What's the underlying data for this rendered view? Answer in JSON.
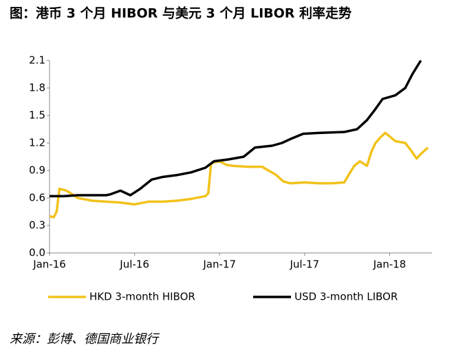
{
  "title": "图：港币 3 个月 HIBOR 与美元 3 个月 LIBOR 利率走势",
  "source": "来源：彭博、德国商业银行",
  "chart_data": {
    "type": "line",
    "xlim": [
      0,
      27
    ],
    "xticks": [
      {
        "value": 0,
        "label": "Jan-16"
      },
      {
        "value": 6,
        "label": "Jul-16"
      },
      {
        "value": 12,
        "label": "Jan-17"
      },
      {
        "value": 18,
        "label": "Jul-17"
      },
      {
        "value": 24,
        "label": "Jan-18"
      }
    ],
    "ylim": [
      0,
      2.1
    ],
    "yticks": [
      {
        "value": 0,
        "label": "0.0"
      },
      0.3,
      0.6,
      0.9,
      1.2,
      1.5,
      1.8,
      2.1
    ],
    "legend": "bottom",
    "series": [
      {
        "name": "HKD 3-month HIBOR",
        "color": "#f2c21b",
        "x": [
          0,
          0.3,
          0.5,
          0.7,
          1.2,
          2,
          3,
          4,
          5,
          6,
          7,
          8,
          9,
          10,
          11,
          11.2,
          11.4,
          12,
          12.5,
          13,
          14,
          15,
          16,
          16.5,
          17,
          18,
          19,
          20,
          20.8,
          21.1,
          21.5,
          21.9,
          22.4,
          22.7,
          23,
          23.4,
          23.7,
          24.4,
          25.1,
          25.5,
          25.9,
          26.2,
          26.7
        ],
        "values": [
          0.4,
          0.39,
          0.45,
          0.7,
          0.68,
          0.6,
          0.57,
          0.56,
          0.55,
          0.53,
          0.56,
          0.56,
          0.57,
          0.59,
          0.62,
          0.65,
          0.98,
          1.0,
          0.96,
          0.95,
          0.94,
          0.94,
          0.85,
          0.78,
          0.76,
          0.77,
          0.76,
          0.76,
          0.77,
          0.85,
          0.95,
          1.0,
          0.95,
          1.1,
          1.2,
          1.27,
          1.31,
          1.22,
          1.2,
          1.12,
          1.03,
          1.08,
          1.15
        ]
      },
      {
        "name": "USD 3-month LIBOR",
        "color": "#000000",
        "x": [
          0,
          1,
          2,
          3,
          4,
          4.3,
          5,
          5.7,
          6.4,
          7.2,
          8,
          9,
          10,
          11,
          11.6,
          12.6,
          13.7,
          14.5,
          15.7,
          16.4,
          17.1,
          17.9,
          19,
          20.8,
          21.7,
          22.4,
          22.9,
          23.5,
          24.4,
          25.1,
          25.6,
          26.2
        ],
        "values": [
          0.62,
          0.62,
          0.63,
          0.63,
          0.63,
          0.64,
          0.68,
          0.63,
          0.7,
          0.8,
          0.83,
          0.85,
          0.88,
          0.93,
          1.0,
          1.02,
          1.05,
          1.15,
          1.17,
          1.2,
          1.25,
          1.3,
          1.31,
          1.32,
          1.35,
          1.45,
          1.55,
          1.68,
          1.72,
          1.8,
          1.95,
          2.1
        ]
      }
    ]
  }
}
